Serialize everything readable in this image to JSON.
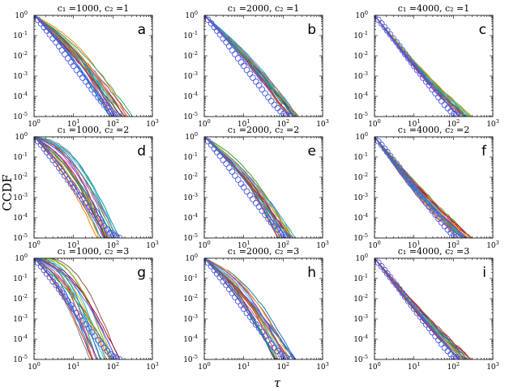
{
  "ylabel": "CCDF",
  "xlabel": "τ",
  "chart_data": [
    {
      "type": "line",
      "panel": "a",
      "title": "c₁ =1000, c₂ =1",
      "c1": "1000",
      "c2": "1",
      "xlim": [
        1,
        1000
      ],
      "ylim": [
        1e-05,
        1
      ],
      "xscale": "log",
      "yscale": "log",
      "reference_series": "circles",
      "lines": {
        "n": 22,
        "end_min": 80,
        "end_max": 320,
        "curve": 0.1
      }
    },
    {
      "type": "line",
      "panel": "b",
      "title": "c₁ =2000, c₂ =1",
      "c1": "2000",
      "c2": "1",
      "xlim": [
        1,
        1000
      ],
      "ylim": [
        1e-05,
        1
      ],
      "xscale": "log",
      "yscale": "log",
      "reference_series": "circles",
      "lines": {
        "n": 22,
        "end_min": 130,
        "end_max": 280,
        "curve": 0.05
      }
    },
    {
      "type": "line",
      "panel": "c",
      "title": "c₁ =4000, c₂ =1",
      "c1": "4000",
      "c2": "1",
      "xlim": [
        1,
        1000
      ],
      "ylim": [
        1e-05,
        1
      ],
      "xscale": "log",
      "yscale": "log",
      "reference_series": "circles",
      "lines": {
        "n": 22,
        "end_min": 140,
        "end_max": 300,
        "curve": -0.04
      }
    },
    {
      "type": "line",
      "panel": "d",
      "title": "c₁ =1000, c₂ =2",
      "c1": "1000",
      "c2": "2",
      "xlim": [
        1,
        1000
      ],
      "ylim": [
        1e-05,
        1
      ],
      "xscale": "log",
      "yscale": "log",
      "reference_series": "circles",
      "lines": {
        "n": 22,
        "end_min": 40,
        "end_max": 160,
        "curve": 0.18
      }
    },
    {
      "type": "line",
      "panel": "e",
      "title": "c₁ =2000, c₂ =2",
      "c1": "2000",
      "c2": "2",
      "xlim": [
        1,
        1000
      ],
      "ylim": [
        1e-05,
        1
      ],
      "xscale": "log",
      "yscale": "log",
      "reference_series": "circles",
      "lines": {
        "n": 22,
        "end_min": 70,
        "end_max": 240,
        "curve": 0.1
      }
    },
    {
      "type": "line",
      "panel": "f",
      "title": "c₁ =4000, c₂ =2",
      "c1": "4000",
      "c2": "2",
      "xlim": [
        1,
        1000
      ],
      "ylim": [
        1e-05,
        1
      ],
      "xscale": "log",
      "yscale": "log",
      "reference_series": "circles",
      "lines": {
        "n": 22,
        "end_min": 130,
        "end_max": 300,
        "curve": -0.05
      }
    },
    {
      "type": "line",
      "panel": "g",
      "title": "c₁ =1000, c₂ =3",
      "c1": "1000",
      "c2": "3",
      "xlim": [
        1,
        1000
      ],
      "ylim": [
        1e-05,
        1
      ],
      "xscale": "log",
      "yscale": "log",
      "reference_series": "circles",
      "lines": {
        "n": 22,
        "end_min": 25,
        "end_max": 170,
        "curve": 0.22
      }
    },
    {
      "type": "line",
      "panel": "h",
      "title": "c₁ =2000, c₂ =3",
      "c1": "2000",
      "c2": "3",
      "xlim": [
        1,
        1000
      ],
      "ylim": [
        1e-05,
        1
      ],
      "xscale": "log",
      "yscale": "log",
      "reference_series": "circles",
      "lines": {
        "n": 22,
        "end_min": 60,
        "end_max": 260,
        "curve": 0.12
      }
    },
    {
      "type": "line",
      "panel": "i",
      "title": "c₁ =4000, c₂ =3",
      "c1": "4000",
      "c2": "3",
      "xlim": [
        1,
        1000
      ],
      "ylim": [
        1e-05,
        1
      ],
      "xscale": "log",
      "yscale": "log",
      "reference_series": "circles",
      "lines": {
        "n": 22,
        "end_min": 130,
        "end_max": 300,
        "curve": -0.03
      }
    }
  ],
  "circle_series": {
    "x": [
      1,
      1.25,
      1.5,
      1.8,
      2.1,
      2.5,
      3,
      3.6,
      4.3,
      5.1,
      6,
      7.2,
      8.6,
      10,
      12,
      14.5,
      17,
      20.5,
      24.5,
      29,
      35,
      42,
      50,
      60,
      72,
      86,
      103,
      123,
      148
    ],
    "y": [
      1,
      0.6,
      0.4,
      0.26,
      0.175,
      0.115,
      0.072,
      0.047,
      0.03,
      0.019,
      0.012,
      0.0076,
      0.0048,
      0.0032,
      0.002,
      0.0013,
      0.00083,
      0.00053,
      0.00035,
      0.00022,
      0.00014,
      9e-05,
      5.8e-05,
      3.8e-05,
      2.6e-05,
      1.8e-05,
      1.4e-05,
      1.2e-05,
      1e-05
    ]
  },
  "colors": [
    "#1f77b4",
    "#d62728",
    "#2ca02c",
    "#ff7f0e",
    "#9467bd",
    "#8c564b",
    "#e377c2",
    "#17becf",
    "#bcbd22",
    "#7f7f7f",
    "#0072bd",
    "#d95319",
    "#edb120",
    "#7e2f8e",
    "#77ac30",
    "#4dbeee",
    "#a2142f",
    "#00a0a0",
    "#5f5fff",
    "#c0392b",
    "#27ae60",
    "#8e44ad"
  ],
  "circle_color": "#4a5be8"
}
